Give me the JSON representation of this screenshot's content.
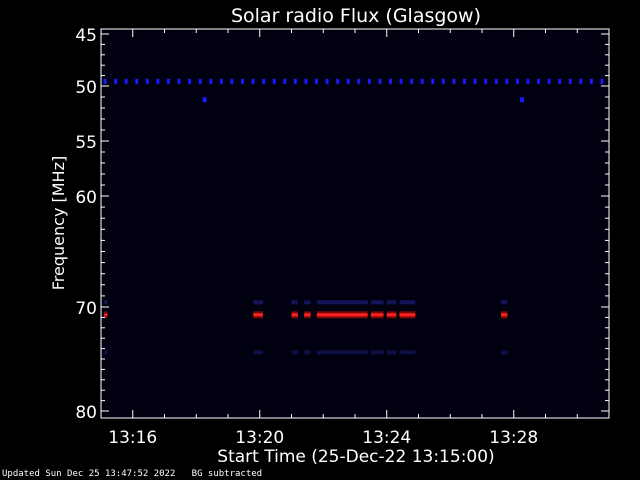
{
  "chart_data": {
    "type": "heatmap",
    "title": "Solar radio Flux (Glasgow)",
    "xlabel": "Start Time (25-Dec-22 13:15:00)",
    "ylabel": "Frequency [MHz]",
    "x_tick_labels": [
      "13:16",
      "13:20",
      "13:24",
      "13:28"
    ],
    "x_ticks_minutes": [
      16,
      20,
      24,
      28
    ],
    "xlim_minutes": [
      15.0,
      31.0
    ],
    "y_tick_labels": [
      "45",
      "50",
      "55",
      "60",
      "70",
      "80"
    ],
    "y_ticks": [
      45,
      50,
      55,
      60,
      70,
      80
    ],
    "ylim": [
      45,
      80
    ],
    "y_axis_inverted": true,
    "background_color": "#000010",
    "features": [
      {
        "name": "50 MHz dotted band",
        "frequency": 49.6,
        "minute_range": [
          15.0,
          31.0
        ],
        "color": "#1a1aff"
      },
      {
        "name": "51 MHz spots",
        "frequency": 51.2,
        "minutes": [
          18.2,
          28.2
        ],
        "color": "#1a1aff"
      },
      {
        "name": "71 MHz emission",
        "frequency": 70.8,
        "segments": [
          [
            15.1,
            15.2
          ],
          [
            19.8,
            20.1
          ],
          [
            21.0,
            21.2
          ],
          [
            21.4,
            21.6
          ],
          [
            21.8,
            23.4
          ],
          [
            23.5,
            23.9
          ],
          [
            24.0,
            24.3
          ],
          [
            24.4,
            24.9
          ],
          [
            27.6,
            27.8
          ]
        ],
        "color": "#ff2020"
      }
    ]
  },
  "footer": {
    "updated": "Updated Sun Dec 25 13:47:52 2022",
    "note": "BG subtracted"
  }
}
